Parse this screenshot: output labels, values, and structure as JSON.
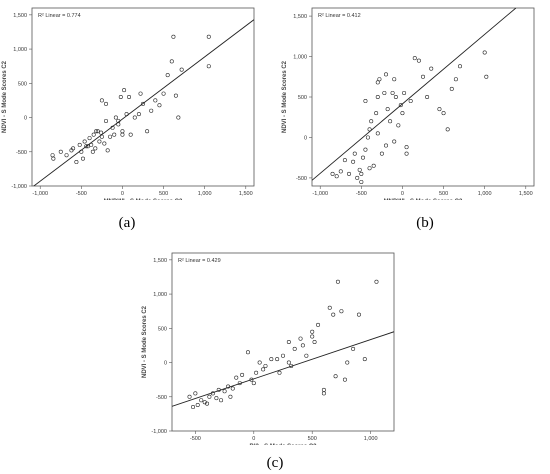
{
  "chart_data": [
    {
      "type": "scatter",
      "panel_label": "(a)",
      "annotation": "R² Linear = 0.774",
      "xlabel": "MNDWI - S Mode Scores C2",
      "ylabel": "NDVI - S Mode Scores C2",
      "xlim": [
        -1.1,
        1.6
      ],
      "ylim": [
        -1.0,
        1.6
      ],
      "xticks": [
        -1.0,
        -0.5,
        0.0,
        0.5,
        1.0,
        1.5
      ],
      "xtick_labels": [
        "-1,000",
        "-500",
        "0",
        "500",
        "1,000",
        "1,500"
      ],
      "yticks": [
        -1.0,
        -0.5,
        0.0,
        0.5,
        1.0,
        1.5
      ],
      "ytick_labels": [
        "-1,000",
        "-500",
        "0",
        "500",
        "1,000",
        "1,500"
      ],
      "fit_line": {
        "x": [
          -1.1,
          1.6
        ],
        "y": [
          -1.02,
          1.43
        ]
      },
      "points": {
        "x": [
          -0.85,
          -0.84,
          -0.75,
          -0.68,
          -0.62,
          -0.6,
          -0.56,
          -0.52,
          -0.5,
          -0.48,
          -0.46,
          -0.44,
          -0.42,
          -0.4,
          -0.38,
          -0.36,
          -0.35,
          -0.33,
          -0.32,
          -0.3,
          -0.28,
          -0.26,
          -0.25,
          -0.22,
          -0.2,
          -0.18,
          -0.15,
          -0.12,
          -0.1,
          -0.08,
          -0.05,
          -0.02,
          0.0,
          0.02,
          0.05,
          0.08,
          0.1,
          0.15,
          0.2,
          0.22,
          0.25,
          0.3,
          0.35,
          0.4,
          0.45,
          0.5,
          0.55,
          0.6,
          0.62,
          0.65,
          0.68,
          0.72,
          1.05,
          1.05,
          -0.2,
          -0.25,
          0.0,
          -0.05
        ],
        "y": [
          -0.55,
          -0.6,
          -0.5,
          -0.55,
          -0.48,
          -0.45,
          -0.65,
          -0.4,
          -0.5,
          -0.6,
          -0.35,
          -0.42,
          -0.42,
          -0.3,
          -0.4,
          -0.5,
          -0.25,
          -0.45,
          -0.2,
          -0.2,
          -0.35,
          -0.22,
          -0.28,
          -0.38,
          -0.05,
          -0.48,
          -0.28,
          -0.15,
          -0.25,
          0.0,
          -0.1,
          0.3,
          -0.2,
          0.4,
          0.05,
          0.3,
          -0.25,
          0.0,
          0.05,
          0.35,
          0.2,
          -0.2,
          0.1,
          0.25,
          0.18,
          0.35,
          0.62,
          0.82,
          1.18,
          0.32,
          0.0,
          0.7,
          1.18,
          0.75,
          0.2,
          0.25,
          -0.25,
          -0.05
        ]
      }
    },
    {
      "type": "scatter",
      "panel_label": "(b)",
      "annotation": "R² Linear = 0.412",
      "xlabel": "MNDWI - S Mode Scores C2",
      "ylabel": "NDVI - S Mode Scores C2",
      "xlim": [
        -1.1,
        1.6
      ],
      "ylim": [
        -0.6,
        1.6
      ],
      "xticks": [
        -1.0,
        -0.5,
        0.0,
        0.5,
        1.0,
        1.5
      ],
      "xtick_labels": [
        "-1,000",
        "-500",
        "0",
        "500",
        "1,000",
        "1,500"
      ],
      "yticks": [
        -0.5,
        0.0,
        0.5,
        1.0,
        1.5
      ],
      "ytick_labels": [
        "-500",
        "0",
        "500",
        "1,000",
        "1,500"
      ],
      "fit_line": {
        "x": [
          -1.1,
          1.38
        ],
        "y": [
          -0.53,
          1.6
        ]
      },
      "points": {
        "x": [
          -0.85,
          -0.8,
          -0.75,
          -0.7,
          -0.65,
          -0.6,
          -0.58,
          -0.55,
          -0.52,
          -0.5,
          -0.48,
          -0.45,
          -0.45,
          -0.42,
          -0.4,
          -0.38,
          -0.35,
          -0.32,
          -0.3,
          -0.3,
          -0.28,
          -0.25,
          -0.22,
          -0.2,
          -0.2,
          -0.18,
          -0.15,
          -0.12,
          -0.1,
          -0.1,
          -0.08,
          -0.05,
          -0.02,
          0.0,
          0.02,
          0.05,
          0.1,
          0.15,
          0.2,
          0.25,
          0.3,
          0.35,
          0.45,
          0.5,
          0.55,
          0.6,
          0.65,
          0.7,
          1.0,
          1.02,
          -0.5,
          -0.4,
          -0.3,
          0.05
        ],
        "y": [
          -0.45,
          -0.48,
          -0.42,
          -0.28,
          -0.45,
          -0.3,
          -0.2,
          -0.5,
          -0.4,
          -0.45,
          -0.25,
          0.45,
          -0.15,
          0.0,
          0.1,
          0.2,
          -0.35,
          0.3,
          0.68,
          0.5,
          0.72,
          -0.2,
          0.55,
          0.78,
          -0.1,
          0.35,
          0.2,
          0.55,
          0.72,
          -0.05,
          0.5,
          0.15,
          0.4,
          0.3,
          0.55,
          -0.12,
          0.45,
          0.98,
          0.95,
          0.75,
          0.5,
          0.85,
          0.35,
          0.3,
          0.1,
          0.6,
          0.72,
          0.88,
          1.05,
          0.75,
          -0.55,
          -0.38,
          0.05,
          -0.2
        ]
      }
    },
    {
      "type": "scatter",
      "panel_label": "(c)",
      "annotation": "R² Linear = 0.429",
      "xlabel": "BI2 - S Mode Scores C2",
      "ylabel": "NDVI - S Mode Scores C2",
      "xlim": [
        -0.7,
        1.2
      ],
      "ylim": [
        -1.0,
        1.6
      ],
      "xticks": [
        -0.5,
        0.0,
        0.5,
        1.0
      ],
      "xtick_labels": [
        "-500",
        "0",
        "500",
        "1,000"
      ],
      "yticks": [
        -1.0,
        -0.5,
        0.0,
        0.5,
        1.0,
        1.5
      ],
      "ytick_labels": [
        "-1,000",
        "-500",
        "0",
        "500",
        "1,000",
        "1,500"
      ],
      "fit_line": {
        "x": [
          -0.7,
          1.2
        ],
        "y": [
          -0.64,
          0.45
        ]
      },
      "points": {
        "x": [
          -0.55,
          -0.52,
          -0.5,
          -0.48,
          -0.45,
          -0.42,
          -0.4,
          -0.38,
          -0.35,
          -0.32,
          -0.3,
          -0.28,
          -0.25,
          -0.22,
          -0.2,
          -0.18,
          -0.15,
          -0.12,
          -0.1,
          -0.05,
          -0.02,
          0.0,
          0.02,
          0.05,
          0.08,
          0.1,
          0.15,
          0.2,
          0.22,
          0.25,
          0.3,
          0.32,
          0.35,
          0.4,
          0.42,
          0.45,
          0.5,
          0.52,
          0.55,
          0.6,
          0.65,
          0.68,
          0.7,
          0.72,
          0.75,
          0.78,
          0.8,
          0.85,
          0.9,
          0.95,
          1.05,
          0.3,
          0.5,
          0.6
        ],
        "y": [
          -0.5,
          -0.65,
          -0.45,
          -0.62,
          -0.55,
          -0.58,
          -0.6,
          -0.5,
          -0.45,
          -0.52,
          -0.4,
          -0.55,
          -0.42,
          -0.35,
          -0.5,
          -0.38,
          -0.22,
          -0.3,
          -0.18,
          0.15,
          -0.25,
          -0.3,
          -0.15,
          0.0,
          -0.1,
          -0.05,
          0.05,
          0.05,
          -0.15,
          0.1,
          0.3,
          -0.05,
          0.2,
          0.35,
          0.25,
          0.1,
          0.45,
          0.3,
          0.55,
          -0.4,
          0.8,
          0.7,
          -0.2,
          1.18,
          0.75,
          -0.25,
          0.0,
          0.2,
          0.7,
          0.05,
          1.18,
          0.0,
          0.38,
          -0.45
        ]
      }
    }
  ]
}
